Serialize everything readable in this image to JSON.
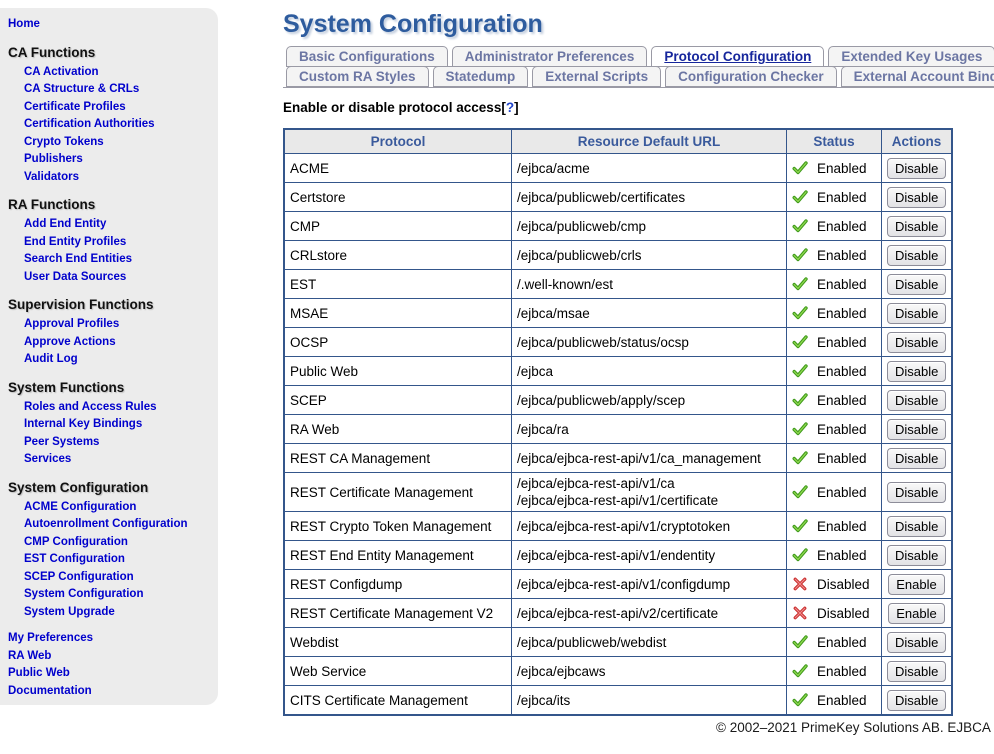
{
  "header": {
    "title": "System Configuration"
  },
  "colors": {
    "accent_blue": "#34568b",
    "title_blue": "#2e5c9e",
    "sidebar_link_blue": "#0000cc",
    "active_tab_blue": "#16269c",
    "enabled_green": "#44a81d",
    "disabled_red": "#d63333",
    "sidebar_bg": "#ececec"
  },
  "sidebar": {
    "sections": [
      {
        "heading": "",
        "gap": false,
        "links": [
          "Home"
        ]
      },
      {
        "heading": "CA Functions",
        "gap": false,
        "links": [
          "CA Activation",
          "CA Structure & CRLs",
          "Certificate Profiles",
          "Certification Authorities",
          "Crypto Tokens",
          "Publishers",
          "Validators"
        ]
      },
      {
        "heading": "RA Functions",
        "gap": false,
        "links": [
          "Add End Entity",
          "End Entity Profiles",
          "Search End Entities",
          "User Data Sources"
        ]
      },
      {
        "heading": "Supervision Functions",
        "gap": false,
        "links": [
          "Approval Profiles",
          "Approve Actions",
          "Audit Log"
        ]
      },
      {
        "heading": "System Functions",
        "gap": false,
        "links": [
          "Roles and Access Rules",
          "Internal Key Bindings",
          "Peer Systems",
          "Services"
        ]
      },
      {
        "heading": "System Configuration",
        "gap": false,
        "links": [
          "ACME Configuration",
          "Autoenrollment Configuration",
          "CMP Configuration",
          "EST Configuration",
          "SCEP Configuration",
          "System Configuration",
          "System Upgrade"
        ]
      },
      {
        "heading": "",
        "gap": true,
        "links": [
          "My Preferences",
          "RA Web",
          "Public Web",
          "Documentation"
        ]
      }
    ]
  },
  "tabs": {
    "row1": [
      {
        "label": "Basic Configurations",
        "active": false
      },
      {
        "label": "Administrator Preferences",
        "active": false
      },
      {
        "label": "Protocol Configuration",
        "active": true
      },
      {
        "label": "Extended Key Usages",
        "active": false
      }
    ],
    "row2": [
      {
        "label": "Custom RA Styles",
        "active": false
      },
      {
        "label": "Statedump",
        "active": false
      },
      {
        "label": "External Scripts",
        "active": false
      },
      {
        "label": "Configuration Checker",
        "active": false
      },
      {
        "label": "External Account Bindings",
        "active": false
      }
    ]
  },
  "subtitle": {
    "text": "Enable or disable protocol access",
    "bracket_open": "[",
    "help": "?",
    "bracket_close": "]"
  },
  "table": {
    "columns": [
      "Protocol",
      "Resource Default URL",
      "Status",
      "Actions"
    ],
    "rows": [
      {
        "protocol": "ACME",
        "urls": [
          "/ejbca/acme"
        ],
        "status": "Enabled",
        "action": "Disable"
      },
      {
        "protocol": "Certstore",
        "urls": [
          "/ejbca/publicweb/certificates"
        ],
        "status": "Enabled",
        "action": "Disable"
      },
      {
        "protocol": "CMP",
        "urls": [
          "/ejbca/publicweb/cmp"
        ],
        "status": "Enabled",
        "action": "Disable"
      },
      {
        "protocol": "CRLstore",
        "urls": [
          "/ejbca/publicweb/crls"
        ],
        "status": "Enabled",
        "action": "Disable"
      },
      {
        "protocol": "EST",
        "urls": [
          "/.well-known/est"
        ],
        "status": "Enabled",
        "action": "Disable"
      },
      {
        "protocol": "MSAE",
        "urls": [
          "/ejbca/msae"
        ],
        "status": "Enabled",
        "action": "Disable"
      },
      {
        "protocol": "OCSP",
        "urls": [
          "/ejbca/publicweb/status/ocsp"
        ],
        "status": "Enabled",
        "action": "Disable"
      },
      {
        "protocol": "Public Web",
        "urls": [
          "/ejbca"
        ],
        "status": "Enabled",
        "action": "Disable"
      },
      {
        "protocol": "SCEP",
        "urls": [
          "/ejbca/publicweb/apply/scep"
        ],
        "status": "Enabled",
        "action": "Disable"
      },
      {
        "protocol": "RA Web",
        "urls": [
          "/ejbca/ra"
        ],
        "status": "Enabled",
        "action": "Disable"
      },
      {
        "protocol": "REST CA Management",
        "urls": [
          "/ejbca/ejbca-rest-api/v1/ca_management"
        ],
        "status": "Enabled",
        "action": "Disable"
      },
      {
        "protocol": "REST Certificate Management",
        "urls": [
          "/ejbca/ejbca-rest-api/v1/ca",
          "/ejbca/ejbca-rest-api/v1/certificate"
        ],
        "status": "Enabled",
        "action": "Disable"
      },
      {
        "protocol": "REST Crypto Token Management",
        "urls": [
          "/ejbca/ejbca-rest-api/v1/cryptotoken"
        ],
        "status": "Enabled",
        "action": "Disable"
      },
      {
        "protocol": "REST End Entity Management",
        "urls": [
          "/ejbca/ejbca-rest-api/v1/endentity"
        ],
        "status": "Enabled",
        "action": "Disable"
      },
      {
        "protocol": "REST Configdump",
        "urls": [
          "/ejbca/ejbca-rest-api/v1/configdump"
        ],
        "status": "Disabled",
        "action": "Enable"
      },
      {
        "protocol": "REST Certificate Management V2",
        "urls": [
          "/ejbca/ejbca-rest-api/v2/certificate"
        ],
        "status": "Disabled",
        "action": "Enable"
      },
      {
        "protocol": "Webdist",
        "urls": [
          "/ejbca/publicweb/webdist"
        ],
        "status": "Enabled",
        "action": "Disable"
      },
      {
        "protocol": "Web Service",
        "urls": [
          "/ejbca/ejbcaws"
        ],
        "status": "Enabled",
        "action": "Disable"
      },
      {
        "protocol": "CITS Certificate Management",
        "urls": [
          "/ejbca/its"
        ],
        "status": "Enabled",
        "action": "Disable"
      }
    ]
  },
  "footer": {
    "copyright": "© 2002–2021 PrimeKey Solutions AB. EJBCA"
  }
}
